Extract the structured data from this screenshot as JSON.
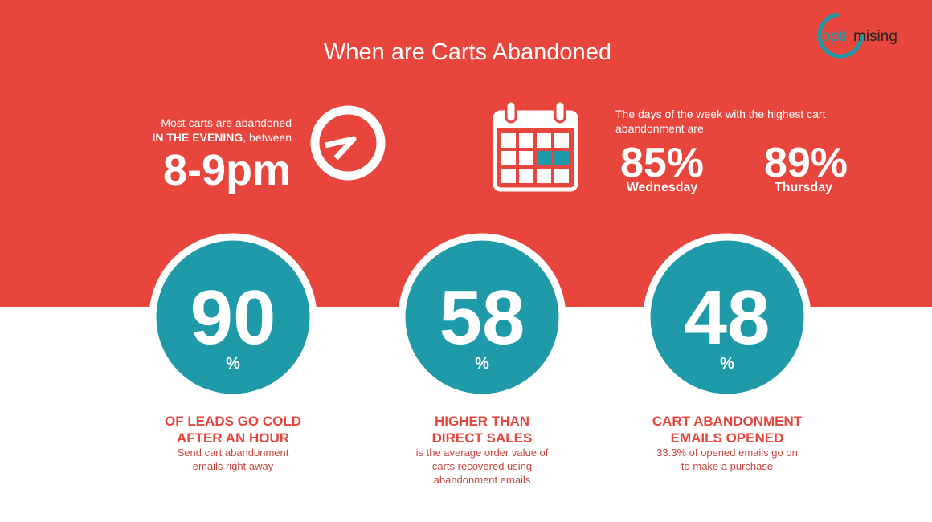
{
  "header": {
    "title": "When are Carts Abandoned",
    "logo": {
      "part1": "opti",
      "part2": "mising"
    }
  },
  "evening": {
    "line1": "Most carts are abandoned",
    "emphasis": "IN THE EVENING",
    "rest": ", between",
    "time": "8-9pm"
  },
  "days": {
    "lines": [
      "The days of the week with the highest cart",
      "abandonment are"
    ],
    "stats": [
      {
        "value": "85%",
        "day": "Wednesday"
      },
      {
        "value": "89%",
        "day": "Thursday"
      }
    ]
  },
  "circles": [
    {
      "number": "90",
      "unit": "%",
      "heading": [
        "OF LEADS GO COLD",
        "AFTER AN HOUR"
      ],
      "body": [
        "Send cart abandonment",
        "emails right away"
      ]
    },
    {
      "number": "58",
      "unit": "%",
      "heading": [
        "HIGHER THAN",
        "DIRECT SALES"
      ],
      "body": [
        "is the average order value of",
        "carts recovered using",
        "abandonment emails"
      ]
    },
    {
      "number": "48",
      "unit": "%",
      "heading": [
        "CART ABANDONMENT",
        "EMAILS OPENED"
      ],
      "body": [
        "33.3% of opened emails go on",
        "to make a purchase"
      ]
    }
  ]
}
